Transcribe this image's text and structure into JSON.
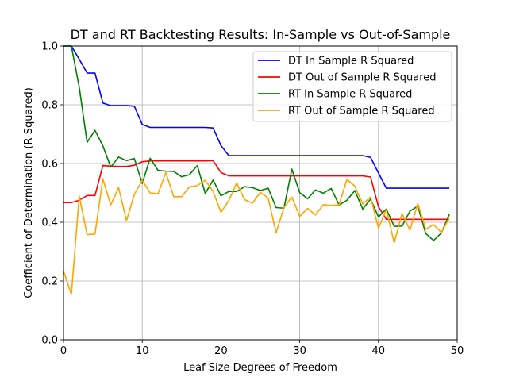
{
  "chart_data": {
    "type": "line",
    "title": "DT and RT Backtesting Results: In-Sample vs Out-of-Sample",
    "xlabel": "Leaf Size Degrees of Freedom",
    "ylabel": "Coefficient of Determination (R-Squared)",
    "xlim": [
      0,
      50
    ],
    "ylim": [
      0.0,
      1.0
    ],
    "xticks": [
      "0",
      "10",
      "20",
      "30",
      "40",
      "50"
    ],
    "yticks": [
      "0.0",
      "0.2",
      "0.4",
      "0.6",
      "0.8",
      "1.0"
    ],
    "grid": true,
    "legend_position": "top-right",
    "x": [
      0,
      1,
      2,
      3,
      4,
      5,
      6,
      7,
      8,
      9,
      10,
      11,
      12,
      13,
      14,
      15,
      16,
      17,
      18,
      19,
      20,
      21,
      22,
      23,
      24,
      25,
      26,
      27,
      28,
      29,
      30,
      31,
      32,
      33,
      34,
      35,
      36,
      37,
      38,
      39,
      40,
      41,
      42,
      43,
      44,
      45,
      46,
      47,
      48,
      49
    ],
    "series": [
      {
        "name": "DT In Sample R Squared",
        "color": "#0000ff",
        "values": [
          1.0,
          1.0,
          0.955,
          0.908,
          0.908,
          0.806,
          0.797,
          0.797,
          0.797,
          0.795,
          0.733,
          0.723,
          0.723,
          0.723,
          0.723,
          0.723,
          0.723,
          0.723,
          0.723,
          0.721,
          0.661,
          0.627,
          0.627,
          0.627,
          0.627,
          0.627,
          0.627,
          0.627,
          0.627,
          0.627,
          0.627,
          0.627,
          0.627,
          0.627,
          0.627,
          0.627,
          0.627,
          0.627,
          0.627,
          0.621,
          0.568,
          0.516,
          0.516,
          0.516,
          0.516,
          0.516,
          0.516,
          0.516,
          0.516,
          0.516
        ]
      },
      {
        "name": "DT Out of Sample R Squared",
        "color": "#ff0000",
        "values": [
          0.467,
          0.467,
          0.475,
          0.491,
          0.491,
          0.593,
          0.591,
          0.59,
          0.59,
          0.594,
          0.606,
          0.609,
          0.609,
          0.609,
          0.609,
          0.609,
          0.609,
          0.609,
          0.609,
          0.61,
          0.569,
          0.558,
          0.558,
          0.558,
          0.558,
          0.558,
          0.558,
          0.558,
          0.558,
          0.558,
          0.558,
          0.558,
          0.558,
          0.558,
          0.558,
          0.558,
          0.558,
          0.558,
          0.558,
          0.554,
          0.453,
          0.41,
          0.41,
          0.41,
          0.41,
          0.41,
          0.41,
          0.41,
          0.41,
          0.41
        ]
      },
      {
        "name": "RT In Sample R Squared",
        "color": "#008000",
        "values": [
          1.0,
          1.0,
          0.86,
          0.672,
          0.713,
          0.66,
          0.588,
          0.622,
          0.61,
          0.617,
          0.532,
          0.618,
          0.577,
          0.574,
          0.573,
          0.555,
          0.562,
          0.593,
          0.498,
          0.544,
          0.49,
          0.505,
          0.505,
          0.521,
          0.518,
          0.508,
          0.516,
          0.45,
          0.448,
          0.581,
          0.501,
          0.48,
          0.51,
          0.499,
          0.515,
          0.459,
          0.475,
          0.508,
          0.445,
          0.479,
          0.418,
          0.445,
          0.386,
          0.387,
          0.438,
          0.455,
          0.362,
          0.338,
          0.364,
          0.427
        ]
      },
      {
        "name": "RT Out of Sample R Squared",
        "color": "#ffa500",
        "values": [
          0.234,
          0.154,
          0.489,
          0.358,
          0.36,
          0.548,
          0.459,
          0.518,
          0.405,
          0.495,
          0.543,
          0.5,
          0.497,
          0.569,
          0.487,
          0.487,
          0.521,
          0.525,
          0.543,
          0.505,
          0.434,
          0.474,
          0.534,
          0.477,
          0.465,
          0.502,
          0.482,
          0.364,
          0.45,
          0.486,
          0.42,
          0.447,
          0.425,
          0.46,
          0.457,
          0.46,
          0.546,
          0.523,
          0.462,
          0.486,
          0.38,
          0.443,
          0.33,
          0.43,
          0.373,
          0.464,
          0.376,
          0.392,
          0.365,
          0.415
        ]
      }
    ]
  }
}
